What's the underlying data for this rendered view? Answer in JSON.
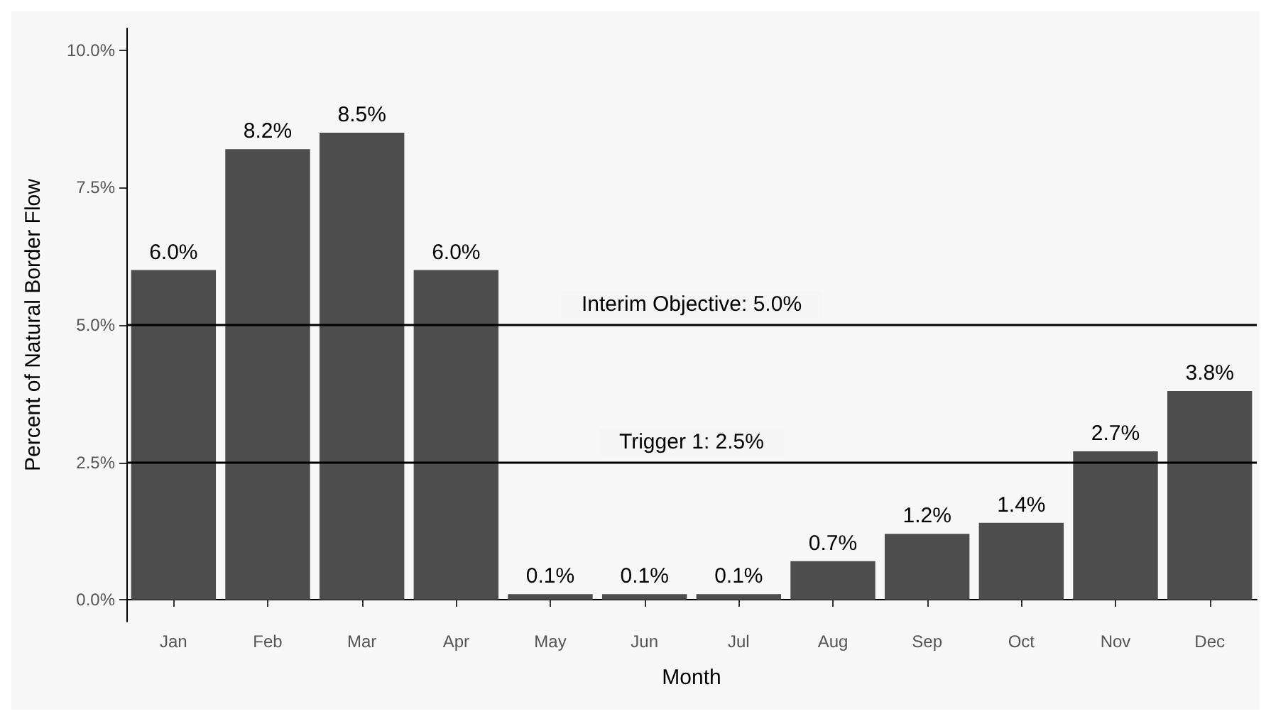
{
  "chart_data": {
    "type": "bar",
    "xlabel": "Month",
    "ylabel": "Percent of Natural Border Flow",
    "categories": [
      "Jan",
      "Feb",
      "Mar",
      "Apr",
      "May",
      "Jun",
      "Jul",
      "Aug",
      "Sep",
      "Oct",
      "Nov",
      "Dec"
    ],
    "values": [
      6.0,
      8.2,
      8.5,
      6.0,
      0.1,
      0.1,
      0.1,
      0.7,
      1.2,
      1.4,
      2.7,
      3.8
    ],
    "value_labels": [
      "6.0%",
      "8.2%",
      "8.5%",
      "6.0%",
      "0.1%",
      "0.1%",
      "0.1%",
      "0.7%",
      "1.2%",
      "1.4%",
      "2.7%",
      "3.8%"
    ],
    "color": "#4d4d4d",
    "ylim": [
      -0.4,
      10.4
    ],
    "yticks": [
      {
        "value": 0,
        "label": "0.0%"
      },
      {
        "value": 2.5,
        "label": "2.5%"
      },
      {
        "value": 5,
        "label": "5.0%"
      },
      {
        "value": 7.5,
        "label": "7.5%"
      },
      {
        "value": 10,
        "label": "10.0%"
      }
    ],
    "ref_lines": [
      {
        "axis": "y",
        "value": 5.0,
        "label": "Interim Objective: 5.0%",
        "color": "#000000"
      },
      {
        "axis": "y",
        "value": 2.5,
        "label": "Trigger 1: 2.5%",
        "color": "#000000"
      }
    ],
    "grid": false
  }
}
